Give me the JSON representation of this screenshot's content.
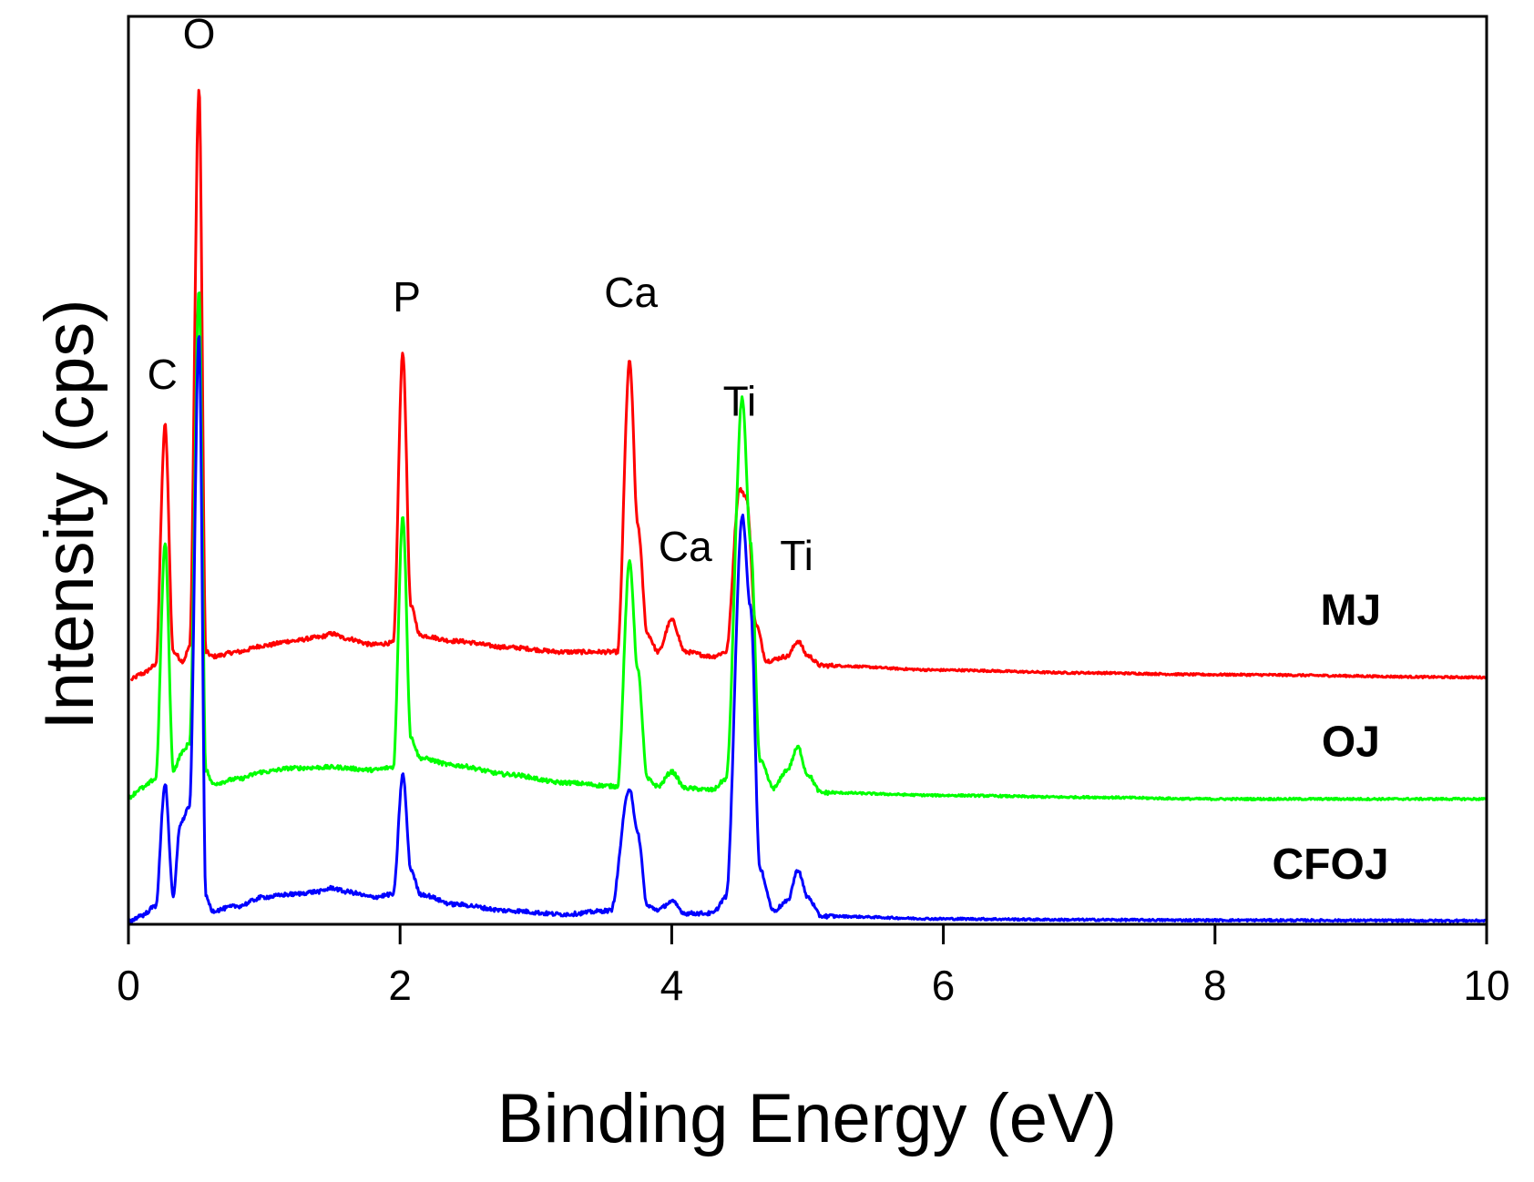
{
  "chart_data": {
    "type": "line",
    "title": "",
    "xlabel": "Binding Energy (eV)",
    "ylabel": "Intensity (cps)",
    "xlim": [
      0,
      10
    ],
    "ylim": [
      0,
      100
    ],
    "xticks": [
      0,
      2,
      4,
      6,
      8,
      10
    ],
    "x_tick_labels": [
      "0",
      "2",
      "4",
      "6",
      "8",
      "10"
    ],
    "y_ticks_labeled": false,
    "grid": false,
    "legend": "inline labels at right",
    "series": [
      {
        "name": "MJ",
        "color": "#ff0000",
        "baseline": 27,
        "points": [
          [
            0.02,
            27
          ],
          [
            0.1,
            27.6
          ],
          [
            0.2,
            28.5
          ],
          [
            0.27,
            55
          ],
          [
            0.33,
            30
          ],
          [
            0.4,
            29
          ],
          [
            0.45,
            30.5
          ],
          [
            0.52,
            92
          ],
          [
            0.57,
            30
          ],
          [
            0.62,
            29.5
          ],
          [
            0.8,
            30
          ],
          [
            1.0,
            30.7
          ],
          [
            1.2,
            31.2
          ],
          [
            1.4,
            31.6
          ],
          [
            1.5,
            32
          ],
          [
            1.6,
            31.5
          ],
          [
            1.8,
            30.8
          ],
          [
            1.95,
            31
          ],
          [
            2.02,
            63
          ],
          [
            2.08,
            35
          ],
          [
            2.15,
            31.8
          ],
          [
            2.4,
            31.2
          ],
          [
            2.8,
            30.5
          ],
          [
            3.2,
            30
          ],
          [
            3.6,
            30
          ],
          [
            3.69,
            62
          ],
          [
            3.75,
            44
          ],
          [
            3.82,
            32
          ],
          [
            3.9,
            30
          ],
          [
            4.0,
            33.5
          ],
          [
            4.1,
            30
          ],
          [
            4.3,
            29.5
          ],
          [
            4.4,
            30
          ],
          [
            4.5,
            48
          ],
          [
            4.55,
            47
          ],
          [
            4.62,
            33
          ],
          [
            4.7,
            29
          ],
          [
            4.85,
            29.5
          ],
          [
            4.93,
            31.2
          ],
          [
            5.0,
            29.6
          ],
          [
            5.1,
            28.5
          ],
          [
            6,
            28
          ],
          [
            7,
            27.7
          ],
          [
            8,
            27.5
          ],
          [
            10,
            27.2
          ]
        ]
      },
      {
        "name": "OJ",
        "color": "#00ff00",
        "baseline": 13.8,
        "points": [
          [
            0.0,
            14
          ],
          [
            0.1,
            15
          ],
          [
            0.2,
            16
          ],
          [
            0.27,
            42
          ],
          [
            0.33,
            17
          ],
          [
            0.4,
            19
          ],
          [
            0.45,
            20
          ],
          [
            0.52,
            70
          ],
          [
            0.57,
            17
          ],
          [
            0.62,
            15.5
          ],
          [
            0.8,
            16
          ],
          [
            1.0,
            16.8
          ],
          [
            1.2,
            17.2
          ],
          [
            1.5,
            17.3
          ],
          [
            1.8,
            17
          ],
          [
            1.95,
            17.3
          ],
          [
            2.02,
            45
          ],
          [
            2.08,
            20.5
          ],
          [
            2.15,
            18.3
          ],
          [
            2.4,
            17.5
          ],
          [
            2.8,
            16.5
          ],
          [
            3.2,
            15.6
          ],
          [
            3.6,
            15.2
          ],
          [
            3.69,
            40
          ],
          [
            3.75,
            28
          ],
          [
            3.82,
            16
          ],
          [
            3.9,
            15.2
          ],
          [
            4.0,
            16.8
          ],
          [
            4.1,
            15
          ],
          [
            4.3,
            14.8
          ],
          [
            4.4,
            16
          ],
          [
            4.52,
            58
          ],
          [
            4.58,
            42
          ],
          [
            4.65,
            18
          ],
          [
            4.75,
            15
          ],
          [
            4.85,
            17
          ],
          [
            4.93,
            19.5
          ],
          [
            5.0,
            16.5
          ],
          [
            5.1,
            14.5
          ],
          [
            6,
            14.2
          ],
          [
            7,
            14
          ],
          [
            8,
            13.8
          ],
          [
            10,
            13.8
          ]
        ]
      },
      {
        "name": "CFOJ",
        "color": "#0000ff",
        "baseline": 0.4,
        "points": [
          [
            0.0,
            0.3
          ],
          [
            0.1,
            1
          ],
          [
            0.2,
            2
          ],
          [
            0.27,
            15.5
          ],
          [
            0.33,
            3
          ],
          [
            0.38,
            11
          ],
          [
            0.45,
            13
          ],
          [
            0.52,
            65
          ],
          [
            0.57,
            3
          ],
          [
            0.62,
            1.5
          ],
          [
            0.8,
            2
          ],
          [
            1.0,
            3
          ],
          [
            1.2,
            3.3
          ],
          [
            1.4,
            3.6
          ],
          [
            1.5,
            4
          ],
          [
            1.6,
            3.6
          ],
          [
            1.8,
            3
          ],
          [
            1.95,
            3.3
          ],
          [
            2.02,
            16.5
          ],
          [
            2.08,
            6
          ],
          [
            2.15,
            3.3
          ],
          [
            2.4,
            2.2
          ],
          [
            2.8,
            1.5
          ],
          [
            3.2,
            1.1
          ],
          [
            3.55,
            1.5
          ],
          [
            3.69,
            15
          ],
          [
            3.75,
            10
          ],
          [
            3.82,
            2
          ],
          [
            3.9,
            1.6
          ],
          [
            4.0,
            2.5
          ],
          [
            4.1,
            1.2
          ],
          [
            4.3,
            1.2
          ],
          [
            4.4,
            3
          ],
          [
            4.52,
            45
          ],
          [
            4.58,
            35
          ],
          [
            4.65,
            6
          ],
          [
            4.75,
            1.5
          ],
          [
            4.85,
            2.5
          ],
          [
            4.93,
            6
          ],
          [
            5.0,
            3
          ],
          [
            5.1,
            0.9
          ],
          [
            6,
            0.6
          ],
          [
            7,
            0.5
          ],
          [
            8,
            0.45
          ],
          [
            10,
            0.4
          ]
        ]
      }
    ],
    "annotations": [
      {
        "text": "C",
        "x": 0.25,
        "y": 59
      },
      {
        "text": "O",
        "x": 0.52,
        "y": 96.5
      },
      {
        "text": "P",
        "x": 2.05,
        "y": 67.5
      },
      {
        "text": "Ca",
        "x": 3.7,
        "y": 68
      },
      {
        "text": "Ca",
        "x": 4.1,
        "y": 40
      },
      {
        "text": "Ti",
        "x": 4.5,
        "y": 56
      },
      {
        "text": "Ti",
        "x": 4.92,
        "y": 39
      }
    ],
    "series_labels": [
      {
        "text": "MJ",
        "x": 9.0,
        "y": 33
      },
      {
        "text": "OJ",
        "x": 9.0,
        "y": 18.5
      },
      {
        "text": "CFOJ",
        "x": 8.85,
        "y": 5
      }
    ]
  }
}
